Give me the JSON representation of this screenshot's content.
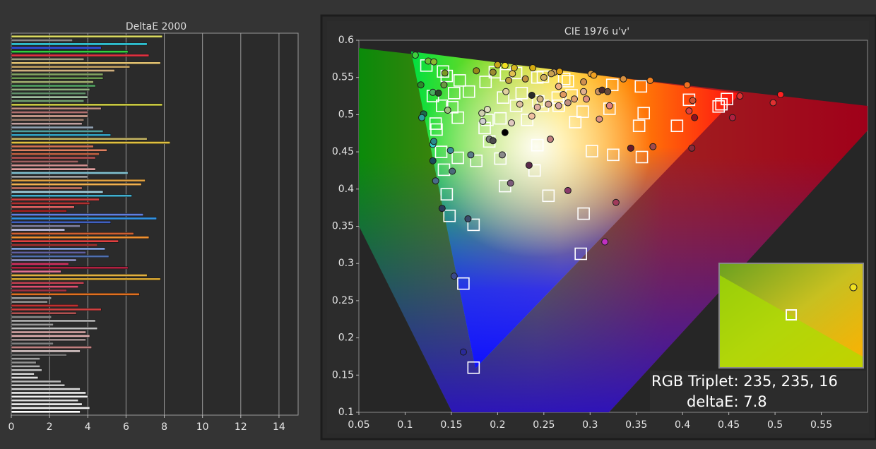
{
  "chart_data": [
    {
      "type": "bar",
      "orientation": "horizontal",
      "title": "DeltaE 2000",
      "values": [
        7.9,
        3.2,
        7.1,
        4.7,
        6.1,
        7.2,
        3.8,
        7.8,
        6.2,
        5.4,
        4.8,
        4.8,
        4.3,
        4.4,
        4.1,
        3.9,
        4.0,
        3.8,
        7.9,
        4.7,
        4.0,
        4.0,
        3.8,
        3.7,
        4.3,
        4.8,
        5.2,
        7.1,
        8.3,
        4.3,
        5.0,
        4.6,
        4.4,
        3.5,
        4.0,
        4.4,
        6.1,
        4.0,
        7.0,
        6.8,
        3.7,
        4.8,
        6.3,
        4.6,
        4.1,
        3.3,
        2.9,
        6.9,
        7.6,
        5.2,
        3.6,
        2.8,
        6.4,
        7.2,
        5.6,
        4.5,
        4.9,
        3.9,
        5.1,
        3.4,
        3.0,
        6.1,
        2.6,
        7.1,
        7.8,
        3.8,
        3.5,
        2.9,
        6.7,
        2.1,
        1.9,
        3.5,
        4.7,
        3.4,
        2.1,
        4.4,
        2.2,
        4.5,
        3.9,
        4.1,
        3.9,
        2.2,
        4.2,
        3.6,
        2.9,
        1.5,
        1.3,
        1.5,
        1.6,
        1.2,
        1.4,
        2.6,
        2.8,
        3.6,
        3.9,
        4.0,
        3.5,
        3.7,
        4.1,
        3.6
      ],
      "colors": [
        "#d8d860",
        "#8a8a8a",
        "#30c8d8",
        "#3050e0",
        "#30d040",
        "#e03040",
        "#a0a080",
        "#e0c070",
        "#c0a060",
        "#d0b080",
        "#80a060",
        "#6a9a50",
        "#a0b070",
        "#50a060",
        "#90b080",
        "#60906a",
        "#a0c0a0",
        "#70a070",
        "#c8c840",
        "#c09080",
        "#b07070",
        "#d0a090",
        "#a08070",
        "#c0a0a0",
        "#90a0b0",
        "#50a0a0",
        "#30a0c0",
        "#c0b060",
        "#e0c040",
        "#d07050",
        "#e08060",
        "#c06040",
        "#b05050",
        "#a06060",
        "#d09090",
        "#e0a0a0",
        "#80c0d0",
        "#a0a0a0",
        "#e0a040",
        "#f0b050",
        "#c07060",
        "#a0d0e0",
        "#40b0d0",
        "#d04040",
        "#b03030",
        "#e06060",
        "#a02020",
        "#6080e0",
        "#3090e0",
        "#4060c0",
        "#8080a0",
        "#c0c0e0",
        "#d06030",
        "#f09030",
        "#e04040",
        "#a03030",
        "#80a0e0",
        "#6060a0",
        "#5070b0",
        "#9090c0",
        "#d03060",
        "#b02040",
        "#e07090",
        "#e0b040",
        "#d0a030",
        "#c04050",
        "#e05070",
        "#a03040",
        "#e07020",
        "#a0a0a0",
        "#909090",
        "#c03030",
        "#d04040",
        "#b05050",
        "#8a8a8a",
        "#b0b0b0",
        "#9a9a9a",
        "#c0c0c0",
        "#d0a0a0",
        "#e0b0b0",
        "#a09090",
        "#808080",
        "#c08080",
        "#d0c0c0",
        "#707070",
        "#a0a0a0",
        "#909090",
        "#b0b0b0",
        "#c0c0c0",
        "#d0d0d0",
        "#e0e0e0",
        "#b8b8b8",
        "#c8c8c8",
        "#d8d8d8",
        "#e8e8e8",
        "#f0f0f0",
        "#dcdcdc",
        "#ececec",
        "#f4f4f4",
        "#ffffff"
      ],
      "xlim": [
        0,
        15
      ],
      "xticks": [
        0,
        2,
        4,
        6,
        8,
        10,
        12,
        14
      ],
      "grid": true
    },
    {
      "type": "scatter",
      "title": "CIE 1976 u'v'",
      "xlim": [
        0.05,
        0.6
      ],
      "ylim": [
        0.1,
        0.6
      ],
      "xticks": [
        0.05,
        0.1,
        0.15,
        0.2,
        0.25,
        0.3,
        0.35,
        0.4,
        0.45,
        0.5,
        0.55
      ],
      "yticks": [
        0.1,
        0.15,
        0.2,
        0.25,
        0.3,
        0.35,
        0.4,
        0.45,
        0.5,
        0.55,
        0.6
      ],
      "grid": false,
      "series": [
        {
          "marker": "square",
          "color": "#ffffff",
          "x": [
            0.123,
            0.141,
            0.145,
            0.197,
            0.209,
            0.22,
            0.243,
            0.249,
            0.276,
            0.272,
            0.159,
            0.13,
            0.153,
            0.169,
            0.187,
            0.206,
            0.226,
            0.244,
            0.265,
            0.28,
            0.324,
            0.355,
            0.407,
            0.448,
            0.442,
            0.439,
            0.133,
            0.134,
            0.14,
            0.151,
            0.157,
            0.189,
            0.186,
            0.203,
            0.22,
            0.232,
            0.249,
            0.266,
            0.284,
            0.292,
            0.321,
            0.358,
            0.353,
            0.394,
            0.139,
            0.157,
            0.142,
            0.177,
            0.203,
            0.243,
            0.24,
            0.302,
            0.325,
            0.356,
            0.145,
            0.148,
            0.174,
            0.208,
            0.255,
            0.293,
            0.29,
            0.163,
            0.174,
            0.191
          ],
          "values": [
            0.566,
            0.558,
            0.552,
            0.557,
            0.553,
            0.556,
            0.55,
            0.551,
            0.545,
            0.548,
            0.546,
            0.525,
            0.529,
            0.531,
            0.544,
            0.523,
            0.529,
            0.518,
            0.523,
            0.526,
            0.54,
            0.538,
            0.52,
            0.521,
            0.514,
            0.511,
            0.488,
            0.48,
            0.512,
            0.51,
            0.496,
            0.493,
            0.482,
            0.495,
            0.512,
            0.493,
            0.512,
            0.512,
            0.49,
            0.504,
            0.508,
            0.502,
            0.485,
            0.485,
            0.45,
            0.442,
            0.426,
            0.438,
            0.441,
            0.459,
            0.425,
            0.451,
            0.446,
            0.443,
            0.393,
            0.364,
            0.352,
            0.404,
            0.391,
            0.367,
            0.313,
            0.273,
            0.16,
            0.464
          ]
        },
        {
          "marker": "circle",
          "x": [
            0.111,
            0.125,
            0.131,
            0.117,
            0.143,
            0.177,
            0.195,
            0.2,
            0.208,
            0.218,
            0.238,
            0.261,
            0.267,
            0.301,
            0.304,
            0.336,
            0.365,
            0.405,
            0.462,
            0.506,
            0.498,
            0.454,
            0.413,
            0.407,
            0.411,
            0.12,
            0.118,
            0.13,
            0.136,
            0.142,
            0.146,
            0.13,
            0.131,
            0.13,
            0.149,
            0.171,
            0.151,
            0.133,
            0.14,
            0.168,
            0.153,
            0.163,
            0.208,
            0.191,
            0.195,
            0.183,
            0.189,
            0.184,
            0.205,
            0.214,
            0.234,
            0.257,
            0.276,
            0.316,
            0.328,
            0.344,
            0.368,
            0.41,
            0.237,
            0.209,
            0.215,
            0.224,
            0.237,
            0.246,
            0.258,
            0.25,
            0.266,
            0.271,
            0.283,
            0.293,
            0.296,
            0.309,
            0.313,
            0.319,
            0.293,
            0.31,
            0.321,
            0.266,
            0.276,
            0.255,
            0.243,
            0.212,
            0.216,
            0.23
          ],
          "values": [
            0.58,
            0.572,
            0.571,
            0.54,
            0.556,
            0.559,
            0.557,
            0.567,
            0.566,
            0.563,
            0.563,
            0.557,
            0.558,
            0.555,
            0.553,
            0.548,
            0.546,
            0.54,
            0.525,
            0.527,
            0.516,
            0.496,
            0.496,
            0.505,
            0.519,
            0.501,
            0.496,
            0.53,
            0.529,
            0.54,
            0.506,
            0.46,
            0.464,
            0.438,
            0.452,
            0.446,
            0.424,
            0.411,
            0.374,
            0.36,
            0.283,
            0.181,
            0.476,
            0.467,
            0.465,
            0.502,
            0.507,
            0.491,
            0.446,
            0.408,
            0.432,
            0.467,
            0.398,
            0.329,
            0.382,
            0.455,
            0.457,
            0.455,
            0.526,
            0.531,
            0.489,
            0.514,
            0.498,
            0.521,
            0.555,
            0.55,
            0.538,
            0.527,
            0.521,
            0.531,
            0.521,
            0.531,
            0.533,
            0.531,
            0.544,
            0.494,
            0.512,
            0.512,
            0.516,
            0.514,
            0.51,
            0.546,
            0.555,
            0.548
          ],
          "colors": [
            "#3ecf3e",
            "#6cbd36",
            "#8cba30",
            "#2a8a2a",
            "#7a9a22",
            "#968a1a",
            "#9a8a30",
            "#c8a81a",
            "#f0e020",
            "#d4b820",
            "#d4aa10",
            "#c8a060",
            "#e0a010",
            "#e0a040",
            "#f0a020",
            "#d89040",
            "#f08020",
            "#f07020",
            "#e03030",
            "#ff2020",
            "#e03030",
            "#b02040",
            "#901020",
            "#e04040",
            "#d05030",
            "#1a6a4a",
            "#2aa0a0",
            "#4ab060",
            "#2a4a2a",
            "#6a9a40",
            "#a0c080",
            "#30d0d0",
            "#2a8a8a",
            "#1a4a5a",
            "#3a8a9a",
            "#5a7a8a",
            "#4a6a7a",
            "#4a6a8a",
            "#2a3a5a",
            "#3a4a6a",
            "#3a4a8a",
            "#2a2a9a",
            "#000000",
            "#7a7a7a",
            "#4a4a4a",
            "#d0d0b0",
            "#e0e0c0",
            "#d0d0d0",
            "#8a8a8a",
            "#7a5a7a",
            "#5a2a4a",
            "#c08080",
            "#8a3a6a",
            "#c030c0",
            "#a03a5a",
            "#6a1a2a",
            "#a04a4a",
            "#8a2a3a",
            "#2a2a2a",
            "#e0d0a0",
            "#e0c8c0",
            "#e0c0a0",
            "#f0c0a0",
            "#d0b080",
            "#c8a050",
            "#d0b060",
            "#f0b080",
            "#e09860",
            "#e0a070",
            "#e0b090",
            "#e09080",
            "#c89060",
            "#4a2a2a",
            "#6a4a3a",
            "#d09050",
            "#e09080",
            "#e08080",
            "#d0a0a0",
            "#c09080",
            "#d0a090",
            "#e0b0a0",
            "#c0a040",
            "#e0c050",
            "#c09040"
          ]
        }
      ],
      "annotations": [
        "RGB Triplet: 235, 235, 16",
        "deltaE: 7.8"
      ]
    }
  ]
}
